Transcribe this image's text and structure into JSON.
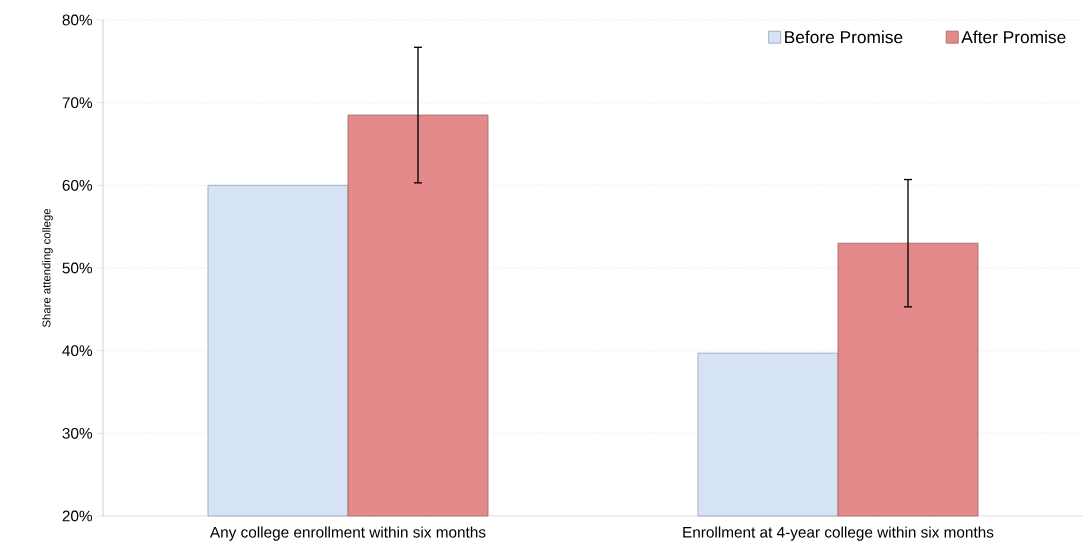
{
  "chart_data": {
    "type": "bar",
    "ylabel": "Share attending college",
    "categories": [
      "Any college enrollment within six months",
      "Enrollment at 4-year college within six months"
    ],
    "series": [
      {
        "name": "Before Promise",
        "color": "#d6e3f5",
        "values": [
          60.0,
          39.7
        ]
      },
      {
        "name": "After Promise",
        "color": "#e58a8a",
        "values": [
          68.5,
          53.0
        ],
        "errors": [
          8.2,
          7.7
        ]
      }
    ],
    "ylim": [
      20,
      80
    ],
    "yticks": [
      {
        "value": 20,
        "label": "20%"
      },
      {
        "value": 30,
        "label": "30%"
      },
      {
        "value": 40,
        "label": "40%"
      },
      {
        "value": 50,
        "label": "50%"
      },
      {
        "value": 60,
        "label": "60%"
      },
      {
        "value": 70,
        "label": "70%"
      },
      {
        "value": 80,
        "label": "80%"
      }
    ],
    "grid": "y",
    "legend": "top right"
  }
}
